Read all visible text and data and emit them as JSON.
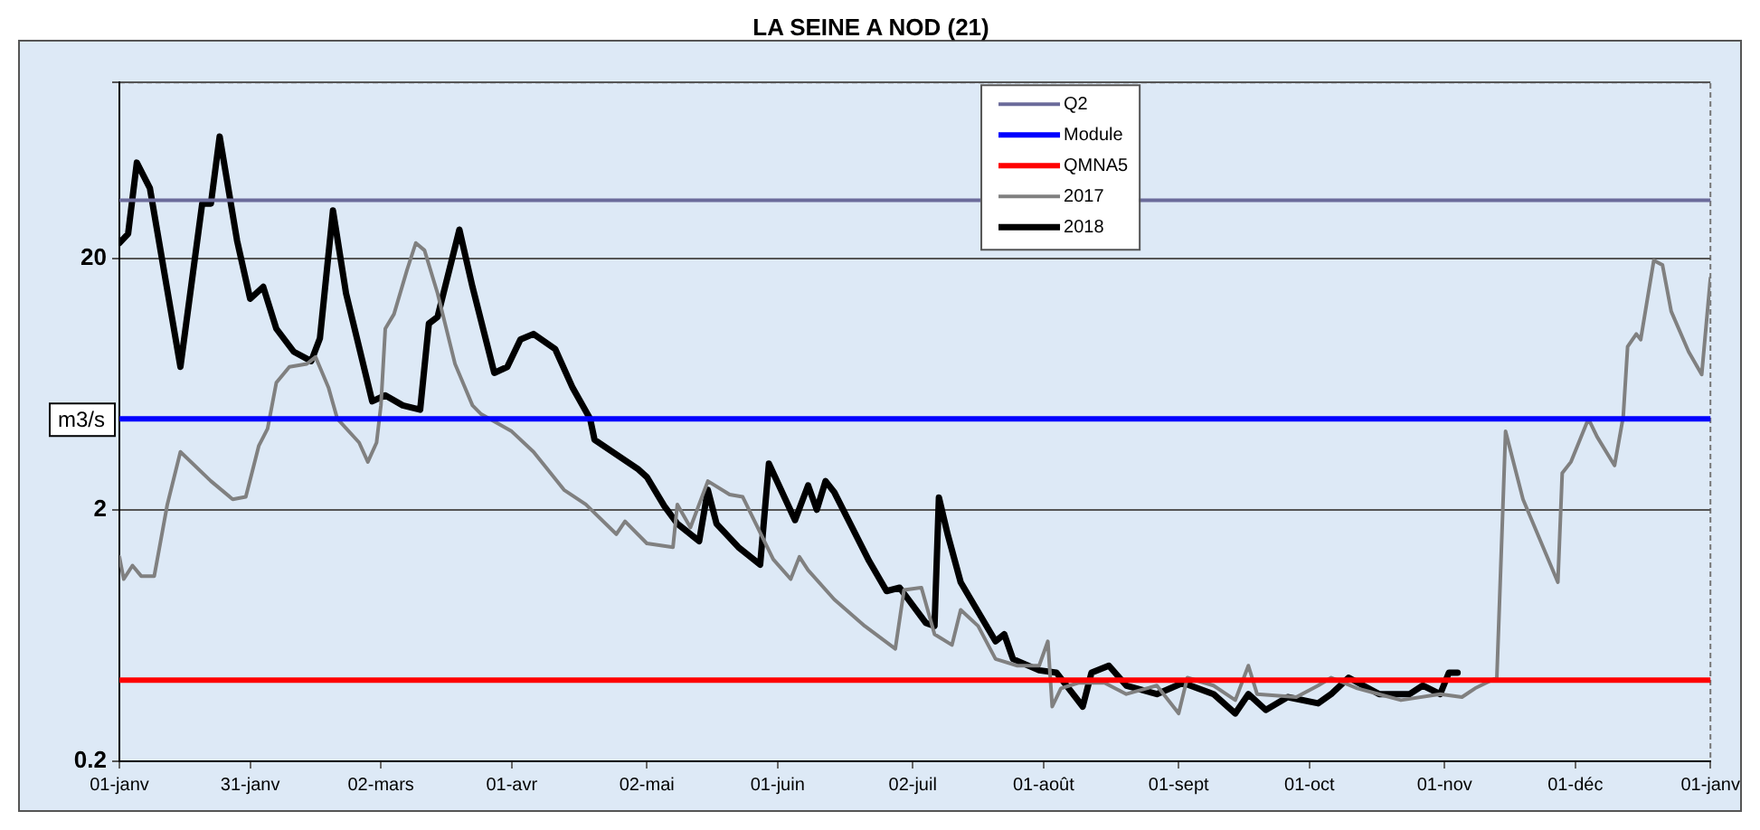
{
  "chart_data": {
    "type": "line",
    "title": "LA SEINE A NOD (21)",
    "ylabel": "m3/s",
    "log": "y",
    "grid": "y",
    "legend": "top",
    "xlim": [
      "2018-01-01",
      "2019-01-01"
    ],
    "xticks": [
      {
        "value": "2018-01-01",
        "label": "01-janv"
      },
      {
        "value": "2018-01-31",
        "label": "31-janv"
      },
      {
        "value": "2018-03-02",
        "label": "02-mars"
      },
      {
        "value": "2018-04-01",
        "label": "01-avr"
      },
      {
        "value": "2018-05-02",
        "label": "02-mai"
      },
      {
        "value": "2018-06-01",
        "label": "01-juin"
      },
      {
        "value": "2018-07-02",
        "label": "02-juil"
      },
      {
        "value": "2018-08-01",
        "label": "01-août"
      },
      {
        "value": "2018-09-01",
        "label": "01-sept"
      },
      {
        "value": "2018-10-01",
        "label": "01-oct"
      },
      {
        "value": "2018-11-01",
        "label": "01-nov"
      },
      {
        "value": "2018-12-01",
        "label": "01-déc"
      },
      {
        "value": "2019-01-01",
        "label": "01-janv"
      }
    ],
    "ylim": [
      0.2,
      100
    ],
    "yticks": [
      0.2,
      2,
      20,
      {
        "value": 100,
        "label": null
      }
    ],
    "series": [
      {
        "name": "Q2",
        "color": "#6b6b9a",
        "x": [
          "2018-01-01",
          "2019-01-01"
        ],
        "values": [
          34,
          34
        ]
      },
      {
        "name": "Module",
        "color": "#0000ff",
        "x": [
          "2018-01-01",
          "2019-01-01"
        ],
        "values": [
          4.6,
          4.6
        ]
      },
      {
        "name": "QMNA5",
        "color": "#ff0000",
        "x": [
          "2018-01-01",
          "2019-01-01"
        ],
        "values": [
          0.42,
          0.42
        ]
      },
      {
        "name": "2017",
        "color": "#808080",
        "x": [
          "2018-01-01",
          "2018-01-02",
          "2018-01-04",
          "2018-01-06",
          "2018-01-09",
          "2018-01-12",
          "2018-01-15",
          "2018-01-22",
          "2018-01-27",
          "2018-01-30",
          "2018-02-02",
          "2018-02-04",
          "2018-02-06",
          "2018-02-09",
          "2018-02-13",
          "2018-02-15",
          "2018-02-18",
          "2018-02-20",
          "2018-02-25",
          "2018-02-27",
          "2018-03-01",
          "2018-03-02",
          "2018-03-03",
          "2018-03-05",
          "2018-03-08",
          "2018-03-10",
          "2018-03-12",
          "2018-03-15",
          "2018-03-19",
          "2018-03-23",
          "2018-03-25",
          "2018-04-01",
          "2018-04-06",
          "2018-04-13",
          "2018-04-18",
          "2018-04-25",
          "2018-04-27",
          "2018-05-02",
          "2018-05-08",
          "2018-05-09",
          "2018-05-12",
          "2018-05-16",
          "2018-05-21",
          "2018-05-24",
          "2018-05-31",
          "2018-06-04",
          "2018-06-06",
          "2018-06-08",
          "2018-06-14",
          "2018-06-21",
          "2018-06-28",
          "2018-06-30",
          "2018-07-04",
          "2018-07-07",
          "2018-07-11",
          "2018-07-13",
          "2018-07-17",
          "2018-07-21",
          "2018-07-26",
          "2018-07-31",
          "2018-08-02",
          "2018-08-03",
          "2018-08-05",
          "2018-08-09",
          "2018-08-15",
          "2018-08-20",
          "2018-08-27",
          "2018-09-01",
          "2018-09-03",
          "2018-09-09",
          "2018-09-14",
          "2018-09-17",
          "2018-09-19",
          "2018-09-28",
          "2018-10-03",
          "2018-10-06",
          "2018-10-12",
          "2018-10-22",
          "2018-10-31",
          "2018-11-05",
          "2018-11-08",
          "2018-11-13",
          "2018-11-15",
          "2018-11-19",
          "2018-11-27",
          "2018-11-28",
          "2018-11-30",
          "2018-12-04",
          "2018-12-06",
          "2018-12-10",
          "2018-12-12",
          "2018-12-13",
          "2018-12-15",
          "2018-12-16",
          "2018-12-19",
          "2018-12-21",
          "2018-12-23",
          "2018-12-27",
          "2018-12-30",
          "2019-01-01"
        ],
        "values": [
          1.3,
          1.06,
          1.2,
          1.09,
          1.09,
          2.1,
          3.4,
          2.6,
          2.2,
          2.25,
          3.6,
          4.2,
          6.4,
          7.4,
          7.6,
          8.1,
          6.1,
          4.6,
          3.7,
          3.1,
          3.7,
          5.2,
          10.5,
          12,
          18,
          23,
          21.5,
          14.5,
          7.6,
          5.2,
          4.8,
          4.1,
          3.4,
          2.4,
          2.1,
          1.6,
          1.8,
          1.47,
          1.42,
          2.1,
          1.7,
          2.6,
          2.3,
          2.25,
          1.27,
          1.06,
          1.3,
          1.15,
          0.88,
          0.69,
          0.56,
          0.96,
          0.98,
          0.64,
          0.58,
          0.8,
          0.69,
          0.51,
          0.48,
          0.48,
          0.6,
          0.33,
          0.39,
          0.41,
          0.41,
          0.37,
          0.4,
          0.31,
          0.43,
          0.4,
          0.35,
          0.48,
          0.37,
          0.36,
          0.4,
          0.43,
          0.39,
          0.35,
          0.37,
          0.36,
          0.39,
          0.43,
          4.1,
          2.2,
          1.03,
          2.8,
          3.1,
          4.6,
          3.9,
          3,
          4.7,
          8.9,
          10,
          9.5,
          19.6,
          18.8,
          12.3,
          8.5,
          6.9,
          16.7
        ]
      },
      {
        "name": "2018",
        "color": "#000000",
        "x": [
          "2018-01-01",
          "2018-01-03",
          "2018-01-05",
          "2018-01-08",
          "2018-01-15",
          "2018-01-20",
          "2018-01-22",
          "2018-01-24",
          "2018-01-28",
          "2018-01-31",
          "2018-02-03",
          "2018-02-06",
          "2018-02-10",
          "2018-02-14",
          "2018-02-16",
          "2018-02-19",
          "2018-02-22",
          "2018-02-28",
          "2018-03-03",
          "2018-03-07",
          "2018-03-11",
          "2018-03-13",
          "2018-03-15",
          "2018-03-20",
          "2018-03-23",
          "2018-03-28",
          "2018-03-31",
          "2018-04-03",
          "2018-04-06",
          "2018-04-11",
          "2018-04-15",
          "2018-04-19",
          "2018-04-20",
          "2018-04-30",
          "2018-05-02",
          "2018-05-06",
          "2018-05-09",
          "2018-05-14",
          "2018-05-16",
          "2018-05-18",
          "2018-05-23",
          "2018-05-28",
          "2018-05-30",
          "2018-06-05",
          "2018-06-08",
          "2018-06-10",
          "2018-06-12",
          "2018-06-14",
          "2018-06-22",
          "2018-06-26",
          "2018-06-29",
          "2018-07-05",
          "2018-07-07",
          "2018-07-08",
          "2018-07-10",
          "2018-07-13",
          "2018-07-21",
          "2018-07-23",
          "2018-07-25",
          "2018-07-31",
          "2018-08-04",
          "2018-08-10",
          "2018-08-12",
          "2018-08-16",
          "2018-08-20",
          "2018-08-27",
          "2018-09-02",
          "2018-09-09",
          "2018-09-14",
          "2018-09-17",
          "2018-09-21",
          "2018-09-26",
          "2018-10-03",
          "2018-10-06",
          "2018-10-10",
          "2018-10-17",
          "2018-10-24",
          "2018-10-27",
          "2018-10-31",
          "2018-11-02",
          "2018-11-04"
        ],
        "values": [
          23,
          25,
          48,
          38,
          7.4,
          33,
          33,
          61,
          23.5,
          13.8,
          15.4,
          10.5,
          8.5,
          7.8,
          9.6,
          31,
          14.5,
          5.4,
          5.7,
          5.2,
          5,
          11,
          11.7,
          26,
          15.4,
          7,
          7.4,
          9.5,
          10,
          8.7,
          6.1,
          4.6,
          3.8,
          2.9,
          2.7,
          2.07,
          1.76,
          1.5,
          2.4,
          1.76,
          1.42,
          1.21,
          3.05,
          1.82,
          2.5,
          2,
          2.6,
          2.35,
          1.25,
          0.95,
          0.98,
          0.71,
          0.69,
          2.24,
          1.6,
          1.03,
          0.6,
          0.64,
          0.51,
          0.46,
          0.45,
          0.33,
          0.45,
          0.48,
          0.4,
          0.37,
          0.41,
          0.37,
          0.31,
          0.37,
          0.32,
          0.36,
          0.34,
          0.37,
          0.43,
          0.37,
          0.37,
          0.4,
          0.37,
          0.45,
          0.45
        ]
      }
    ]
  }
}
